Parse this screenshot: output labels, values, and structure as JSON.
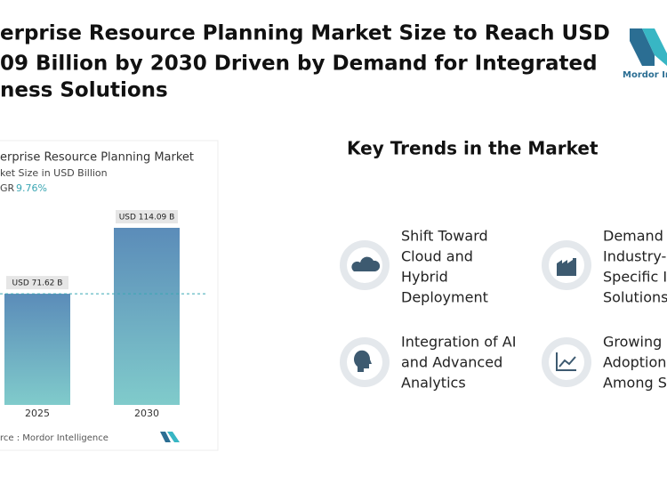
{
  "header": {
    "title_lines": [
      "erprise Resource Planning Market Size to Reach USD",
      "09 Billion by 2030 Driven by Demand for Integrated",
      "ness Solutions"
    ],
    "logo_text": "Mordor Int"
  },
  "chart_data": {
    "type": "bar",
    "title": "erprise Resource Planning Market",
    "subtitle": "ket Size in USD Billion",
    "cagr_label": "GR",
    "cagr_value": "9.76%",
    "categories": [
      "2025",
      "2030"
    ],
    "values": [
      71.62,
      114.09
    ],
    "value_labels": [
      "USD 71.62 B",
      "USD 114.09 B"
    ],
    "gradient": [
      "#5b8cb9",
      "#80cbcb"
    ],
    "source": "rce :  Mordor Intelligence"
  },
  "trends": {
    "title": "Key Trends in the Market",
    "items": [
      {
        "lines": [
          "Shift Toward",
          "Cloud and",
          "Hybrid",
          "Deployment"
        ]
      },
      {
        "lines": [
          "Demand",
          "Industry-",
          "Specific I",
          "Solutions"
        ]
      },
      {
        "lines": [
          "Integration of AI",
          "and Advanced",
          "Analytics"
        ]
      },
      {
        "lines": [
          "Growing",
          "Adoption",
          "Among S"
        ]
      }
    ]
  }
}
